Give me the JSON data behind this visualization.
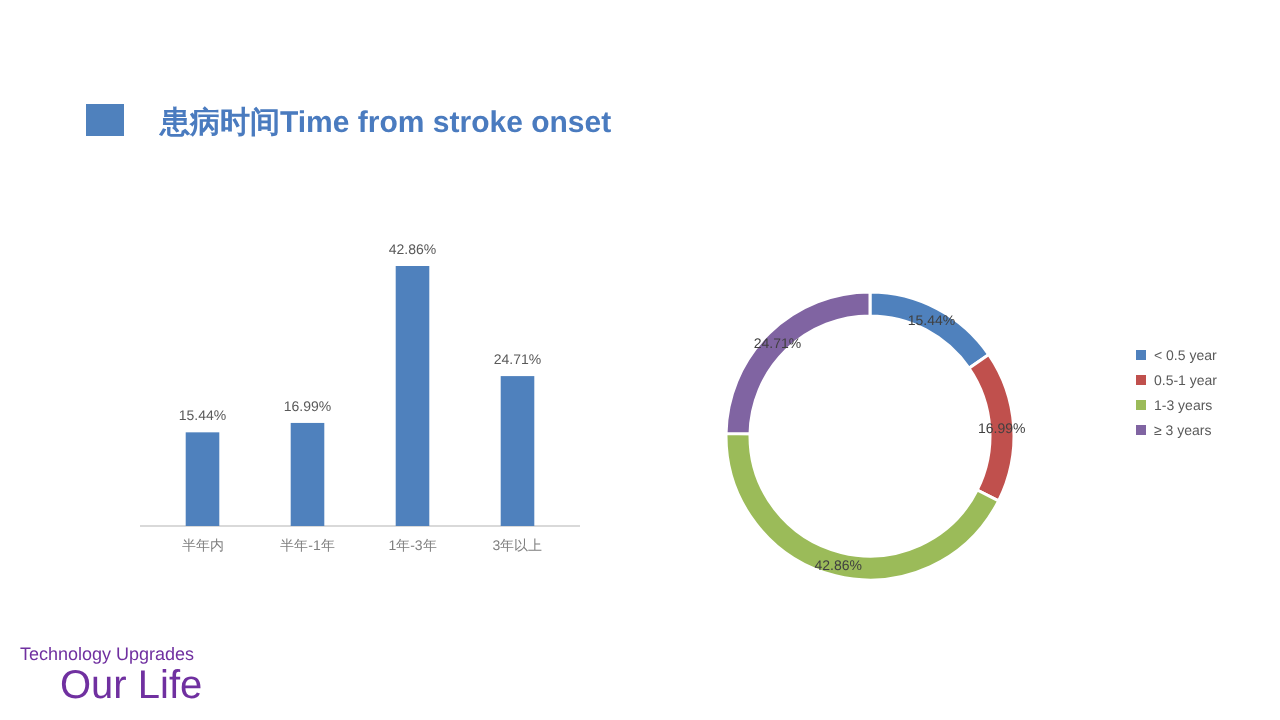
{
  "chart_data": [
    {
      "type": "bar",
      "title": "患病时间Time from stroke onset",
      "categories": [
        "半年内",
        "半年-1年",
        "1年-3年",
        "3年以上"
      ],
      "values": [
        15.44,
        16.99,
        42.86,
        24.71
      ],
      "color": "#4f81bd",
      "value_labels": [
        "15.44%",
        "16.99%",
        "42.86%",
        "24.71%"
      ]
    },
    {
      "type": "donut",
      "categories": [
        "< 0.5 year",
        "0.5-1 year",
        "1-3 years",
        "≥ 3 years"
      ],
      "values": [
        15.44,
        16.99,
        42.86,
        24.71
      ],
      "colors": [
        "#4f81bd",
        "#c0504d",
        "#9bbb59",
        "#8064a2"
      ],
      "value_labels": [
        "15.44%",
        "16.99%",
        "42.86%",
        "24.71%"
      ],
      "legend": "right",
      "annotations": [
        "Technology Upgrades",
        "Our Life"
      ]
    }
  ]
}
